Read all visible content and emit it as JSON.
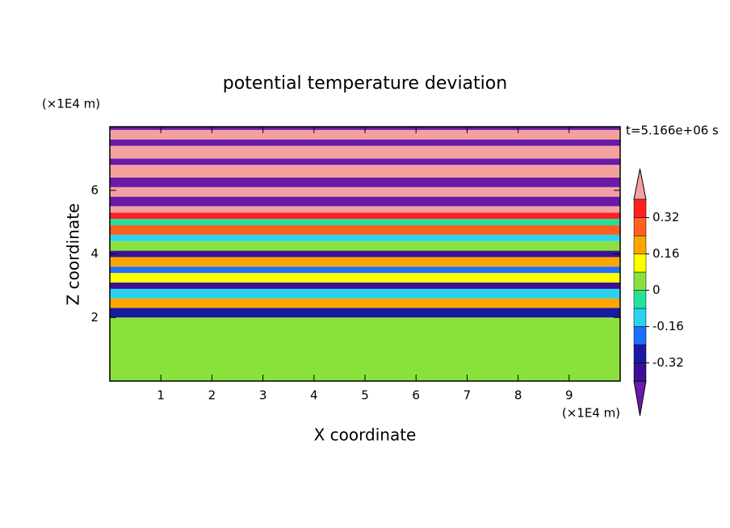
{
  "chart_data": {
    "type": "contour",
    "title": "potential temperature deviation",
    "x_label": "X coordinate",
    "y_label": "Z coordinate",
    "x_unit": "(×1E4 m)",
    "y_unit": "(×1E4 m)",
    "annotation": "t=5.166e+06 s",
    "xlim": [
      0,
      10
    ],
    "xticks": [
      1,
      2,
      3,
      4,
      5,
      6,
      7,
      8,
      9
    ],
    "ylim": [
      0,
      8
    ],
    "yticks": [
      2,
      4,
      6
    ],
    "field": {
      "z_edges": [
        0,
        2,
        2.3,
        2.6,
        2.9,
        3.1,
        3.4,
        3.6,
        3.9,
        4.1,
        4.4,
        4.6,
        4.9,
        5.1,
        5.3,
        5.5,
        5.8,
        6.1,
        6.4,
        6.8,
        7.0,
        7.4,
        7.6,
        7.9,
        8
      ],
      "values": [
        0.02,
        -0.3,
        0.2,
        -0.1,
        -0.35,
        0.1,
        -0.2,
        0.2,
        -0.35,
        0.05,
        -0.12,
        0.25,
        -0.05,
        0.35,
        0.45,
        -0.45,
        0.45,
        -0.45,
        0.45,
        -0.45,
        0.45,
        -0.45,
        0.45,
        -0.45
      ]
    },
    "colorbar": {
      "levels": [
        -0.4,
        -0.32,
        -0.24,
        -0.16,
        -0.08,
        0,
        0.08,
        0.16,
        0.24,
        0.32,
        0.4
      ],
      "colors": [
        "#6a1aa8",
        "#3c0f96",
        "#1a1aa0",
        "#1e6eff",
        "#2ad2f0",
        "#22e29a",
        "#8be13c",
        "#ffff00",
        "#ffa500",
        "#ff6020",
        "#ff2020",
        "#f5a0a0"
      ],
      "ticks": [
        -0.32,
        -0.16,
        0,
        0.16,
        0.32
      ]
    }
  }
}
